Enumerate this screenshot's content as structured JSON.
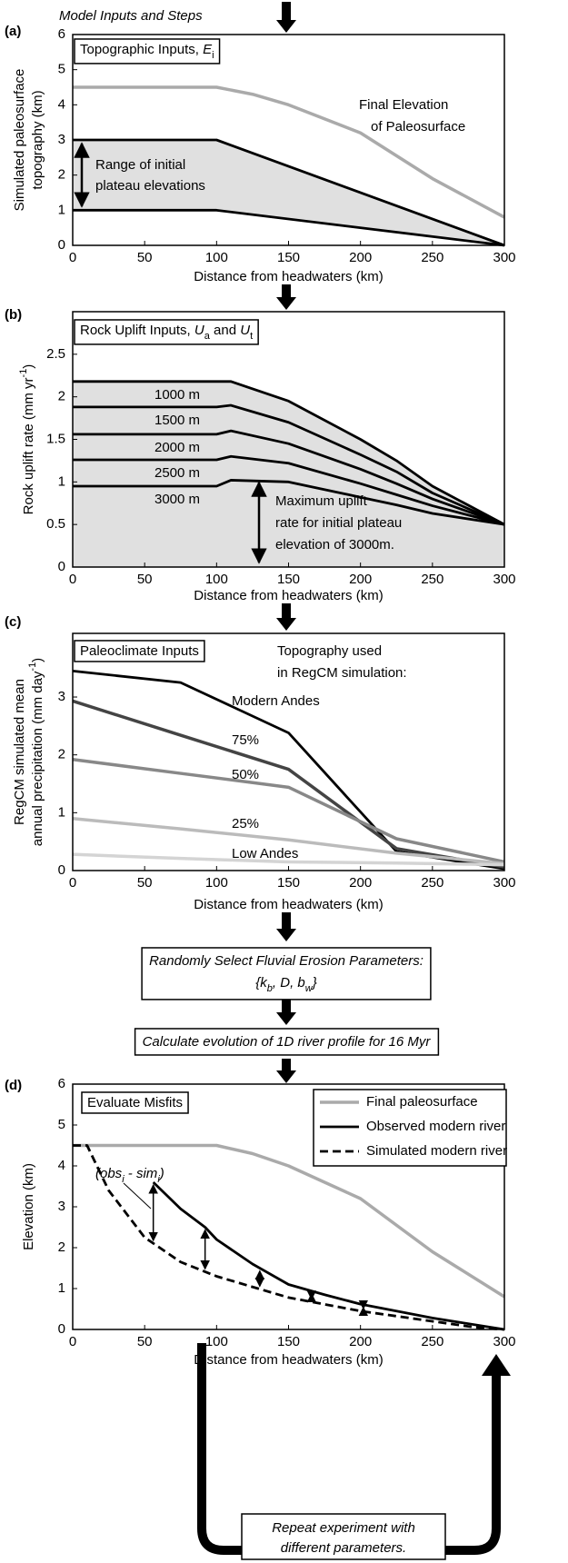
{
  "chart_data": [
    {
      "type": "line",
      "panel": "(a)",
      "xlabel": "Distance from headwaters (km)",
      "ylabel": [
        "Simulated paleosurface",
        "topography (km)"
      ],
      "xlim": [
        0,
        300
      ],
      "xticks": [
        0,
        50,
        100,
        150,
        200,
        250,
        300
      ],
      "ylim": [
        0,
        6
      ],
      "yticks": [
        0,
        1,
        2,
        3,
        4,
        5,
        6
      ],
      "series": [
        {
          "color": "#aaaaaa",
          "x": [
            0,
            100,
            125,
            150,
            200,
            250,
            300
          ],
          "values": [
            4.5,
            4.5,
            4.3,
            4.0,
            3.2,
            1.9,
            0.8
          ]
        },
        {
          "color": "#000000",
          "x": [
            0,
            100,
            300
          ],
          "values": [
            3,
            3,
            0
          ]
        },
        {
          "color": "#000000",
          "x": [
            0,
            100,
            300
          ],
          "values": [
            1,
            1,
            0
          ]
        }
      ],
      "shade": {
        "color": "#e0e0e0",
        "between": [
          1,
          2
        ]
      },
      "annotations": [
        [
          "Topographic Inputs, ",
          {
            "text": "E",
            "style": "italic"
          },
          {
            "text": "i",
            "style": "sub"
          }
        ],
        "Range of initial",
        "plateau elevations",
        "Final Elevation",
        "of Paleosurface"
      ]
    },
    {
      "type": "line",
      "panel": "(b)",
      "xlabel": "Distance from headwaters (km)",
      "ylabel": [
        [
          "Rock uplift rate (mm yr",
          {
            "text": "-1",
            "style": "sup"
          },
          ")"
        ]
      ],
      "xlim": [
        0,
        300
      ],
      "xticks": [
        0,
        50,
        100,
        150,
        200,
        250,
        300
      ],
      "ylim": [
        0,
        3
      ],
      "yticks": [
        0,
        0.5,
        1.0,
        1.5,
        2.0,
        2.5
      ],
      "x": [
        0,
        100,
        110,
        150,
        200,
        225,
        250,
        300
      ],
      "series": [
        {
          "name": "1000 m",
          "color": "#000000",
          "values": [
            2.18,
            2.18,
            2.18,
            1.95,
            1.5,
            1.25,
            0.95,
            0.5
          ]
        },
        {
          "name": "1500 m",
          "color": "#000000",
          "values": [
            1.88,
            1.88,
            1.9,
            1.7,
            1.32,
            1.12,
            0.87,
            0.5
          ]
        },
        {
          "name": "2000 m",
          "color": "#000000",
          "values": [
            1.56,
            1.56,
            1.6,
            1.45,
            1.15,
            0.98,
            0.8,
            0.5
          ]
        },
        {
          "name": "2500 m",
          "color": "#000000",
          "values": [
            1.26,
            1.26,
            1.3,
            1.22,
            0.98,
            0.85,
            0.72,
            0.5
          ]
        },
        {
          "name": "3000 m",
          "color": "#000000",
          "values": [
            0.95,
            0.95,
            1.02,
            1.0,
            0.82,
            0.73,
            0.63,
            0.5
          ]
        }
      ],
      "series_labels": "inline",
      "shade": {
        "color": "#e0e0e0",
        "between": [
          0
        ]
      },
      "annotations": [
        [
          "Rock Uplift Inputs, ",
          {
            "text": "U",
            "style": "italic"
          },
          {
            "text": "a",
            "style": "sub"
          },
          " and ",
          {
            "text": "U",
            "style": "italic"
          },
          {
            "text": "t",
            "style": "sub"
          }
        ],
        "Maximum uplift",
        "rate for initial plateau",
        "elevation of 3000m."
      ]
    },
    {
      "type": "line",
      "panel": "(c)",
      "xlabel": "Distance from headwaters (km)",
      "ylabel": [
        "RegCM simulated mean",
        [
          "annual precipitation (mm day",
          {
            "text": "-1",
            "style": "sup"
          },
          ")"
        ]
      ],
      "xlim": [
        0,
        300
      ],
      "xticks": [
        0,
        50,
        100,
        150,
        200,
        250,
        300
      ],
      "ylim": [
        0,
        4.1
      ],
      "yticks": [
        0,
        1,
        2,
        3
      ],
      "x": [
        0,
        75,
        150,
        225,
        300
      ],
      "series": [
        {
          "name": "Modern Andes",
          "color": "#000000",
          "values": [
            3.45,
            3.25,
            2.38,
            0.33,
            0.03
          ]
        },
        {
          "name": "75%",
          "color": "#444444",
          "values": [
            2.93,
            2.34,
            1.75,
            0.38,
            0.06
          ]
        },
        {
          "name": "50%",
          "color": "#888888",
          "values": [
            1.92,
            1.68,
            1.44,
            0.55,
            0.15
          ]
        },
        {
          "name": "25%",
          "color": "#bbbbbb",
          "values": [
            0.9,
            0.72,
            0.53,
            0.3,
            0.12
          ]
        },
        {
          "name": "Low Andes",
          "color": "#d4d4d4",
          "values": [
            0.28,
            0.21,
            0.15,
            0.13,
            0.1
          ]
        }
      ],
      "series_labels": "inline",
      "annotations": [
        "Paleoclimate Inputs",
        "Topography used",
        "in RegCM simulation:"
      ]
    },
    {
      "type": "line",
      "panel": "(d)",
      "xlabel": "Distance from headwaters (km)",
      "ylabel": [
        "Elevation (km)"
      ],
      "xlim": [
        0,
        300
      ],
      "xticks": [
        0,
        50,
        100,
        150,
        200,
        250,
        300
      ],
      "ylim": [
        0,
        6
      ],
      "yticks": [
        0,
        1,
        2,
        3,
        4,
        5,
        6
      ],
      "series": [
        {
          "name": "Final paleosurface",
          "color": "#aaaaaa",
          "x": [
            0,
            100,
            125,
            150,
            200,
            250,
            300
          ],
          "values": [
            4.5,
            4.5,
            4.3,
            4.0,
            3.2,
            1.9,
            0.8
          ]
        },
        {
          "name": "Observed modern river",
          "color": "#000000",
          "x": [
            56,
            75,
            92,
            100,
            125,
            150,
            175,
            200,
            250,
            300
          ],
          "values": [
            3.6,
            2.95,
            2.5,
            2.2,
            1.6,
            1.1,
            0.85,
            0.62,
            0.28,
            0
          ]
        },
        {
          "name": "Simulated modern river",
          "color": "#000000",
          "dash": true,
          "x": [
            0,
            10,
            25,
            50,
            75,
            100,
            150,
            200,
            250,
            280,
            300
          ],
          "values": [
            4.5,
            4.5,
            3.4,
            2.25,
            1.65,
            1.3,
            0.78,
            0.45,
            0.2,
            0.05,
            0
          ]
        }
      ],
      "legend": "upper right",
      "annotations": [
        "Evaluate Misfits",
        [
          "(obs",
          {
            "text": "i",
            "style": "sub"
          },
          " - sim",
          {
            "text": "i",
            "style": "sub"
          },
          ")"
        ]
      ]
    }
  ],
  "flow": {
    "heading": "Model Inputs and Steps",
    "steps": [
      [
        "Randomly Select Fluvial Erosion Parameters:",
        [
          "{k",
          {
            "text": "b",
            "style": "sub"
          },
          ", D, b",
          {
            "text": "w",
            "style": "sub"
          },
          "}"
        ]
      ],
      [
        "Calculate evolution of 1D river profile for 16 Myr"
      ]
    ],
    "repeat": [
      "Repeat experiment with",
      "different parameters."
    ]
  }
}
